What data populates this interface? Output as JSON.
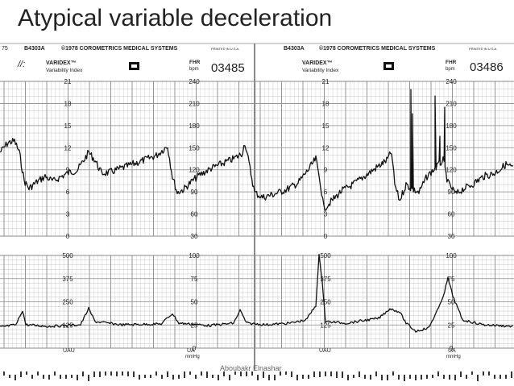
{
  "slide": {
    "title": "Atypical variable deceleration",
    "watermark": "Aboubakr Elnashar"
  },
  "strip": {
    "edge_number": "75",
    "left_panel": {
      "part_number": "B4303A",
      "copyright": "©1978 COROMETRICS MEDICAL SYSTEMS",
      "printed": "PRINTED IN U.S.A.",
      "brand": "VARIDEX™",
      "brand_sub": "Variability Index",
      "fhr_label": "FHR",
      "fhr_unit": "bpm",
      "chart_id": "03485"
    },
    "right_panel": {
      "part_number": "B4303A",
      "copyright": "©1978 COROMETRICS MEDICAL SYSTEMS",
      "printed": "PRINTED IN U.S.A.",
      "brand": "VARIDEX™",
      "brand_sub": "Variability Index",
      "fhr_label": "FHR",
      "fhr_unit": "bpm",
      "chart_id": "03486"
    },
    "varidex_scale": [
      "21",
      "18",
      "15",
      "12",
      "9",
      "6",
      "3",
      "0"
    ],
    "fhr_scale": [
      "240",
      "210",
      "180",
      "150",
      "120",
      "90",
      "60",
      "30"
    ],
    "uau_scale": [
      "500",
      "375",
      "250",
      "125"
    ],
    "ua_scale": [
      "100",
      "75",
      "50",
      "25",
      "0"
    ],
    "uau_label": "UAU",
    "ua_label": "UA",
    "ua_unit": "mmHg",
    "colors": {
      "grid": "#8a8a8a",
      "trace": "#111111",
      "paper": "#ffffff"
    }
  }
}
